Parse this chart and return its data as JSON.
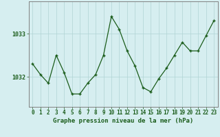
{
  "x": [
    0,
    1,
    2,
    3,
    4,
    5,
    6,
    7,
    8,
    9,
    10,
    11,
    12,
    13,
    14,
    15,
    16,
    17,
    18,
    19,
    20,
    21,
    22,
    23
  ],
  "y": [
    1032.3,
    1032.05,
    1031.85,
    1032.5,
    1032.1,
    1031.6,
    1031.6,
    1031.85,
    1032.05,
    1032.5,
    1033.4,
    1033.1,
    1032.6,
    1032.25,
    1031.75,
    1031.65,
    1031.95,
    1032.2,
    1032.5,
    1032.8,
    1032.6,
    1032.6,
    1032.95,
    1033.3
  ],
  "line_color": "#1a5c1a",
  "marker_color": "#1a5c1a",
  "bg_color": "#d6eef0",
  "grid_color": "#b0d4d4",
  "xlabel": "Graphe pression niveau de la mer (hPa)",
  "xlabel_color": "#1a5c1a",
  "yticks": [
    1032,
    1033
  ],
  "ylim": [
    1031.3,
    1033.75
  ],
  "spine_color": "#808080",
  "tick_color": "#1a5c1a",
  "fontsize_xtick": 5.5,
  "fontsize_ytick": 6.0,
  "fontsize_xlabel": 6.5
}
